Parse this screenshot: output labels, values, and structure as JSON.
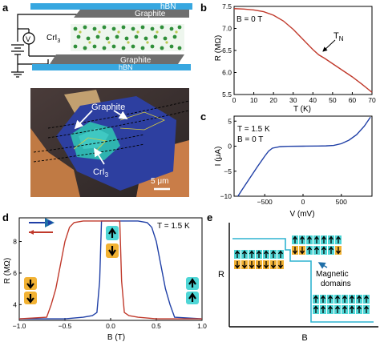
{
  "panels": {
    "a": {
      "label": "a",
      "hbn_top": "hBN",
      "graphite_top": "Graphite",
      "cri3": "CrI",
      "cri3_sub": "3",
      "graphite_bottom": "Graphite",
      "hbn_bottom": "hBN",
      "micro_graphite": "Graphite",
      "micro_cri3": "CrI",
      "micro_cri3_sub": "3",
      "scale_bar": "5 μm",
      "voltmeter": "V"
    },
    "b": {
      "label": "b",
      "annotation": "B = 0 T",
      "tn": "T",
      "tn_sub": "N",
      "xlabel": "T (K)",
      "ylabel": "R (MΩ)"
    },
    "c": {
      "label": "c",
      "annotation_t": "T = 1.5 K",
      "annotation_b": "B = 0 T",
      "xlabel": "V (mV)",
      "ylabel": "I (μA)"
    },
    "d": {
      "label": "d",
      "annotation": "T = 1.5 K",
      "xlabel": "B (T)",
      "ylabel": "R (MΩ)"
    },
    "e": {
      "label": "e",
      "xlabel": "B",
      "ylabel": "R",
      "annotation_1": "Magnetic",
      "annotation_2": "domains"
    }
  },
  "chart_data": [
    {
      "panel": "b",
      "type": "line",
      "xlabel": "T (K)",
      "ylabel": "R (MΩ)",
      "xlim": [
        0,
        70
      ],
      "ylim": [
        5.5,
        7.5
      ],
      "xticks": [
        0,
        10,
        20,
        30,
        40,
        50,
        60,
        70
      ],
      "yticks": [
        5.5,
        6.0,
        6.5,
        7.0,
        7.5
      ],
      "xtick_labels": [
        "0",
        "10",
        "20",
        "30",
        "40",
        "50",
        "60",
        "70"
      ],
      "ytick_labels": [
        "5.5",
        "6.0",
        "6.5",
        "7.0",
        "7.5"
      ],
      "color": "#c0392b",
      "x": [
        0,
        5,
        10,
        15,
        20,
        25,
        30,
        35,
        40,
        43,
        46,
        50,
        55,
        60,
        65,
        70
      ],
      "y": [
        7.45,
        7.44,
        7.42,
        7.38,
        7.3,
        7.17,
        6.98,
        6.75,
        6.52,
        6.4,
        6.32,
        6.2,
        6.05,
        5.9,
        5.73,
        5.55
      ]
    },
    {
      "panel": "c",
      "type": "line",
      "xlabel": "V (mV)",
      "ylabel": "I (μA)",
      "xlim": [
        -900,
        900
      ],
      "ylim": [
        -10,
        6
      ],
      "xticks": [
        -500,
        0,
        500
      ],
      "yticks": [
        -10,
        -5,
        0,
        5
      ],
      "xtick_labels": [
        "−500",
        "0",
        "500"
      ],
      "ytick_labels": [
        "−10",
        "−5",
        "0",
        "5"
      ],
      "color": "#1f3fa6",
      "x": [
        -850,
        -800,
        -700,
        -600,
        -500,
        -450,
        -400,
        -300,
        -200,
        0,
        200,
        300,
        400,
        500,
        600,
        700,
        800,
        880
      ],
      "y": [
        -10,
        -8.8,
        -6.5,
        -4.2,
        -2.0,
        -1.0,
        -0.4,
        -0.1,
        -0.03,
        0,
        0.03,
        0.06,
        0.15,
        0.5,
        1.2,
        2.3,
        4.0,
        5.8
      ]
    },
    {
      "panel": "d",
      "type": "line",
      "xlabel": "B (T)",
      "ylabel": "R (MΩ)",
      "xlim": [
        -1.0,
        1.0
      ],
      "ylim": [
        3,
        9.5
      ],
      "xticks": [
        -1.0,
        -0.5,
        0.0,
        0.5,
        1.0
      ],
      "yticks": [
        4,
        6,
        8
      ],
      "xtick_labels": [
        "−1.0",
        "−0.5",
        "0.0",
        "0.5",
        "1.0"
      ],
      "ytick_labels": [
        "4",
        "6",
        "8"
      ],
      "series": [
        {
          "color": "#1f3fa6",
          "x": [
            -1.0,
            -0.5,
            -0.3,
            -0.2,
            -0.15,
            -0.12,
            -0.1,
            -0.08,
            0.0,
            0.3,
            0.4,
            0.45,
            0.5,
            0.55,
            0.6,
            0.65,
            0.7,
            1.0
          ],
          "y": [
            3.1,
            3.1,
            3.2,
            3.3,
            3.5,
            5.5,
            9.3,
            9.3,
            9.3,
            9.3,
            9.2,
            8.9,
            8.0,
            6.5,
            5.0,
            4.0,
            3.2,
            3.1
          ]
        },
        {
          "color": "#c0392b",
          "x": [
            -1.0,
            -0.7,
            -0.65,
            -0.6,
            -0.55,
            -0.5,
            -0.45,
            -0.4,
            -0.3,
            0.0,
            0.08,
            0.1,
            0.12,
            0.15,
            0.2,
            0.3,
            0.5,
            1.0
          ],
          "y": [
            3.1,
            3.2,
            4.0,
            5.0,
            6.5,
            8.0,
            8.9,
            9.2,
            9.3,
            9.3,
            9.3,
            9.3,
            5.5,
            3.5,
            3.3,
            3.2,
            3.1,
            3.1
          ]
        }
      ]
    }
  ]
}
